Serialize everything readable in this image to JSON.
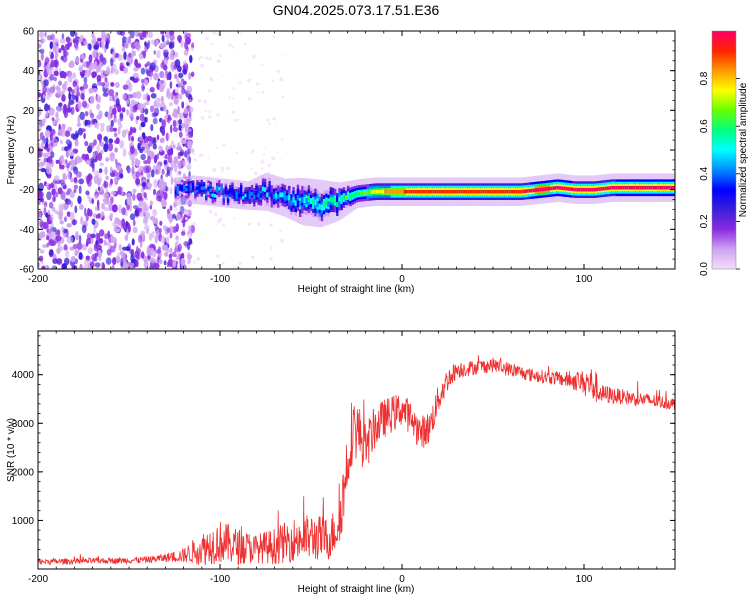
{
  "figure_title": "GN04.2025.073.17.51.E36",
  "chart_data": [
    {
      "type": "heatmap",
      "name": "spectrogram",
      "xlabel": "Height of straight line (km)",
      "ylabel": "Frequency (Hz)",
      "xlim": [
        -200,
        150
      ],
      "ylim": [
        -60,
        60
      ],
      "xticks": [
        -200,
        -100,
        0,
        100
      ],
      "yticks": [
        -60,
        -40,
        -20,
        0,
        20,
        40,
        60
      ],
      "grid": false,
      "colorbar": {
        "label": "Normalized spectral amplitude",
        "range": [
          0,
          1
        ],
        "ticks": [
          0.0,
          0.2,
          0.4,
          0.6,
          0.8
        ],
        "colormap": [
          "#f2ddfb",
          "#cfa3f2",
          "#8a2be2",
          "#3a1fd8",
          "#0000ff",
          "#008cff",
          "#00ffff",
          "#00ff80",
          "#66ff00",
          "#ffff00",
          "#ff9900",
          "#ff2200",
          "#ff0066"
        ]
      },
      "ridge": {
        "x": [
          -125,
          -115,
          -105,
          -95,
          -85,
          -75,
          -65,
          -55,
          -45,
          -35,
          -25,
          -15,
          -5,
          5,
          15,
          25,
          35,
          45,
          55,
          65,
          75,
          85,
          95,
          105,
          115,
          125,
          135,
          145,
          150
        ],
        "y": [
          -21,
          -20,
          -21,
          -22,
          -23,
          -21,
          -24,
          -26,
          -27,
          -26,
          -22,
          -21,
          -21,
          -21,
          -21,
          -21,
          -21,
          -21,
          -21,
          -21,
          -20,
          -19,
          -20,
          -20,
          -19,
          -19,
          -19,
          -19,
          -19
        ],
        "amplitude": [
          0.35,
          0.38,
          0.4,
          0.42,
          0.4,
          0.42,
          0.45,
          0.5,
          0.55,
          0.55,
          0.6,
          0.75,
          0.85,
          0.9,
          0.9,
          0.9,
          0.9,
          0.92,
          0.92,
          0.95,
          1.0,
          0.98,
          0.97,
          0.96,
          0.97,
          0.98,
          0.98,
          0.98,
          0.98
        ],
        "halfwidth": [
          3,
          3,
          3,
          3,
          3,
          4,
          4,
          5,
          5,
          4,
          3,
          3,
          3,
          3,
          3,
          3,
          3,
          3,
          3,
          3,
          3,
          3,
          3,
          3,
          3,
          3,
          3,
          3,
          3
        ]
      },
      "noise_region_x": [
        -200,
        -125
      ],
      "noise_amplitude": 0.2
    },
    {
      "type": "line",
      "name": "snr",
      "xlabel": "Height of straight line (km)",
      "ylabel": "SNR (10 * v/v)",
      "xlim": [
        -200,
        150
      ],
      "ylim": [
        0,
        4900
      ],
      "xticks": [
        -200,
        -100,
        0,
        100
      ],
      "yticks": [
        1000,
        2000,
        3000,
        4000
      ],
      "grid": false,
      "color": "#ee3030",
      "series": [
        {
          "x": [
            -200,
            -180,
            -160,
            -140,
            -130,
            -120,
            -110,
            -100,
            -90,
            -80,
            -70,
            -60,
            -50,
            -40,
            -35,
            -32,
            -30,
            -28,
            -25,
            -20,
            -15,
            -10,
            -5,
            0,
            5,
            10,
            15,
            20,
            25,
            30,
            40,
            50,
            60,
            70,
            80,
            90,
            100,
            105,
            110,
            120,
            130,
            140,
            150
          ],
          "values": [
            150,
            160,
            170,
            190,
            230,
            280,
            420,
            560,
            460,
            420,
            470,
            600,
            650,
            620,
            900,
            1600,
            2200,
            2800,
            2900,
            2500,
            2900,
            3100,
            3200,
            3300,
            3100,
            2800,
            2900,
            3500,
            3900,
            4100,
            4150,
            4200,
            4100,
            4000,
            3950,
            3900,
            3850,
            3800,
            3600,
            3550,
            3500,
            3450,
            3400
          ],
          "noise": [
            60,
            60,
            60,
            70,
            90,
            150,
            350,
            450,
            380,
            300,
            380,
            450,
            500,
            450,
            500,
            700,
            800,
            700,
            650,
            500,
            450,
            400,
            380,
            350,
            350,
            350,
            350,
            300,
            250,
            180,
            150,
            150,
            150,
            140,
            140,
            160,
            250,
            400,
            200,
            160,
            150,
            140,
            130
          ]
        }
      ]
    }
  ]
}
